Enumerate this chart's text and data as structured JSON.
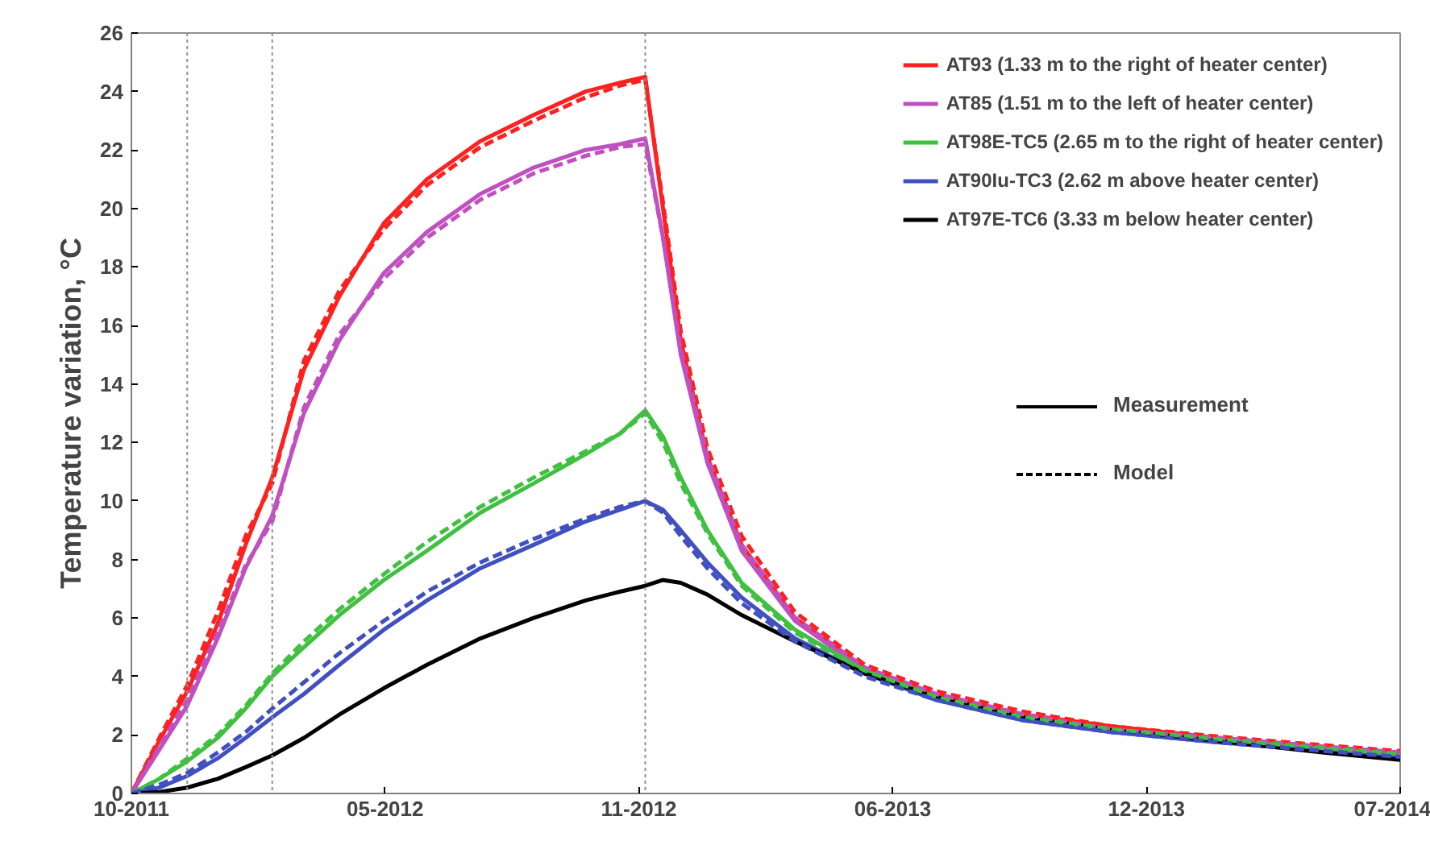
{
  "chart_data": {
    "type": "line",
    "ylabel": "Temperature variation, °C",
    "x": [
      "2011-10-15",
      "2011-11-06",
      "2011-11-28",
      "2011-12-22",
      "2012-01-13",
      "2012-02-03",
      "2012-02-28",
      "2012-03-27",
      "2012-05-01",
      "2012-06-04",
      "2012-07-16",
      "2012-08-27",
      "2012-10-07",
      "2012-11-03",
      "2012-11-23",
      "2012-12-07",
      "2012-12-21",
      "2013-01-11",
      "2013-02-07",
      "2013-03-21",
      "2013-05-15",
      "2013-07-10",
      "2013-09-17",
      "2013-11-25",
      "2014-02-17",
      "2014-05-12",
      "2014-07-11"
    ],
    "xlim": [
      "2011-10-15",
      "2014-07-11"
    ],
    "xticks": [
      {
        "value": "2011-10-15",
        "label": "10-2011"
      },
      {
        "value": "2012-05-02",
        "label": "05-2012"
      },
      {
        "value": "2012-11-18",
        "label": "11-2012"
      },
      {
        "value": "2013-06-06",
        "label": "06-2013"
      },
      {
        "value": "2013-12-23",
        "label": "12-2013"
      },
      {
        "value": "2014-07-11",
        "label": "07-2014"
      }
    ],
    "ylim": [
      0,
      26
    ],
    "yticks": [
      0,
      2,
      4,
      6,
      8,
      10,
      12,
      14,
      16,
      18,
      20,
      22,
      24,
      26
    ],
    "grid": false,
    "legend": "top right",
    "marker": "none",
    "series": [
      {
        "name": "AT93 (1.33 m to the right of heater center)",
        "color": "#ff2020",
        "line_style": "solid",
        "values": [
          0,
          1.8,
          3.5,
          5.8,
          8.5,
          10.8,
          14.5,
          17.0,
          19.5,
          21.0,
          22.3,
          23.2,
          24.0,
          24.3,
          24.5,
          20.0,
          15.5,
          11.5,
          8.5,
          6.0,
          4.3,
          3.4,
          2.7,
          2.3,
          1.9,
          1.6,
          1.4
        ]
      },
      {
        "name": "AT85 (1.51 m to the left of heater center)",
        "color": "#c050c0",
        "line_style": "solid",
        "values": [
          0,
          1.5,
          3.0,
          5.3,
          7.7,
          9.5,
          13.0,
          15.5,
          17.8,
          19.2,
          20.5,
          21.4,
          22.0,
          22.2,
          22.4,
          19.0,
          15.0,
          11.3,
          8.3,
          5.9,
          4.2,
          3.3,
          2.6,
          2.2,
          1.85,
          1.55,
          1.35
        ]
      },
      {
        "name": "AT98E-TC5 (2.65 m to the right of heater center)",
        "color": "#40c040",
        "line_style": "solid",
        "values": [
          0,
          0.5,
          1.1,
          1.9,
          2.9,
          4.0,
          5.0,
          6.1,
          7.3,
          8.3,
          9.6,
          10.6,
          11.6,
          12.3,
          13.1,
          12.2,
          10.8,
          9.0,
          7.2,
          5.6,
          4.2,
          3.3,
          2.6,
          2.2,
          1.85,
          1.55,
          1.35
        ]
      },
      {
        "name": "AT90Iu-TC3 (2.62 m above heater center)",
        "color": "#4050c0",
        "line_style": "solid",
        "values": [
          0,
          0.2,
          0.6,
          1.2,
          1.9,
          2.6,
          3.4,
          4.4,
          5.6,
          6.6,
          7.7,
          8.5,
          9.3,
          9.7,
          10.0,
          9.7,
          9.0,
          7.9,
          6.7,
          5.3,
          4.1,
          3.2,
          2.5,
          2.1,
          1.75,
          1.45,
          1.25
        ]
      },
      {
        "name": "AT97E-TC6 (3.33 m below heater center)",
        "color": "#000000",
        "line_style": "solid",
        "values": [
          0,
          0.05,
          0.2,
          0.5,
          0.9,
          1.3,
          1.9,
          2.7,
          3.6,
          4.4,
          5.3,
          6.0,
          6.6,
          6.9,
          7.1,
          7.3,
          7.2,
          6.8,
          6.1,
          5.2,
          4.1,
          3.3,
          2.6,
          2.2,
          1.8,
          1.4,
          1.15
        ]
      },
      {
        "color": "#ff2020",
        "line_style": "dashed",
        "values": [
          0,
          1.9,
          3.7,
          6.2,
          8.8,
          10.6,
          14.8,
          17.2,
          19.3,
          20.8,
          22.1,
          23.0,
          23.8,
          24.2,
          24.4,
          20.2,
          15.8,
          11.8,
          8.8,
          6.2,
          4.4,
          3.5,
          2.8,
          2.3,
          1.95,
          1.65,
          1.45
        ]
      },
      {
        "color": "#c050c0",
        "line_style": "dashed",
        "values": [
          0,
          1.6,
          3.2,
          5.5,
          7.8,
          9.3,
          13.2,
          15.7,
          17.6,
          19.0,
          20.3,
          21.2,
          21.8,
          22.1,
          22.2,
          19.0,
          15.2,
          11.5,
          8.5,
          6.0,
          4.3,
          3.4,
          2.7,
          2.2,
          1.9,
          1.6,
          1.4
        ]
      },
      {
        "color": "#40c040",
        "line_style": "dashed",
        "values": [
          0,
          0.5,
          1.2,
          2.0,
          3.0,
          4.1,
          5.2,
          6.3,
          7.5,
          8.6,
          9.8,
          10.8,
          11.7,
          12.3,
          13.0,
          12.0,
          10.6,
          8.9,
          7.1,
          5.5,
          4.2,
          3.3,
          2.6,
          2.2,
          1.85,
          1.55,
          1.35
        ]
      },
      {
        "color": "#4050c0",
        "line_style": "dashed",
        "values": [
          0,
          0.3,
          0.7,
          1.4,
          2.1,
          2.9,
          3.8,
          4.8,
          5.9,
          6.9,
          7.9,
          8.7,
          9.4,
          9.8,
          10.0,
          9.6,
          8.8,
          7.7,
          6.5,
          5.2,
          4.0,
          3.2,
          2.5,
          2.1,
          1.75,
          1.45,
          1.25
        ]
      }
    ],
    "ref_lines": [
      {
        "axis": "x",
        "value": "2011-11-28",
        "color": "#909090",
        "line_style": "dotted"
      },
      {
        "axis": "x",
        "value": "2012-02-03",
        "color": "#909090",
        "line_style": "dotted"
      },
      {
        "axis": "x",
        "value": "2012-11-23",
        "color": "#909090",
        "line_style": "dotted"
      }
    ],
    "annotations": [
      "Measurement",
      "Model"
    ]
  }
}
